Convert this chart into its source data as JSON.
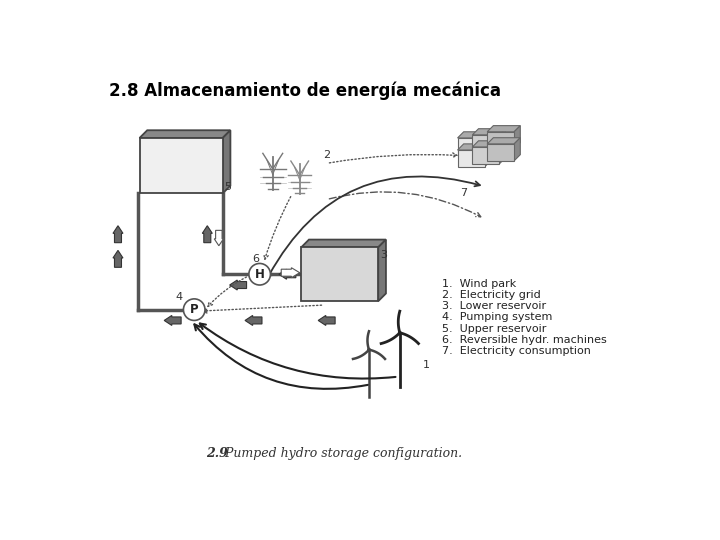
{
  "title": "2.8 Almacenamiento de energía mecánica",
  "caption_bold": "2.9",
  "caption_italic": " Pumped hydro storage configuration.",
  "legend_items": [
    "1.  Wind park",
    "2.  Electricity grid",
    "3.  Lower reservoir",
    "4.  Pumping system",
    "5.  Upper reservoir",
    "6.  Reversible hydr. machines",
    "7.  Electricity consumption"
  ],
  "bg_color": "#ffffff"
}
